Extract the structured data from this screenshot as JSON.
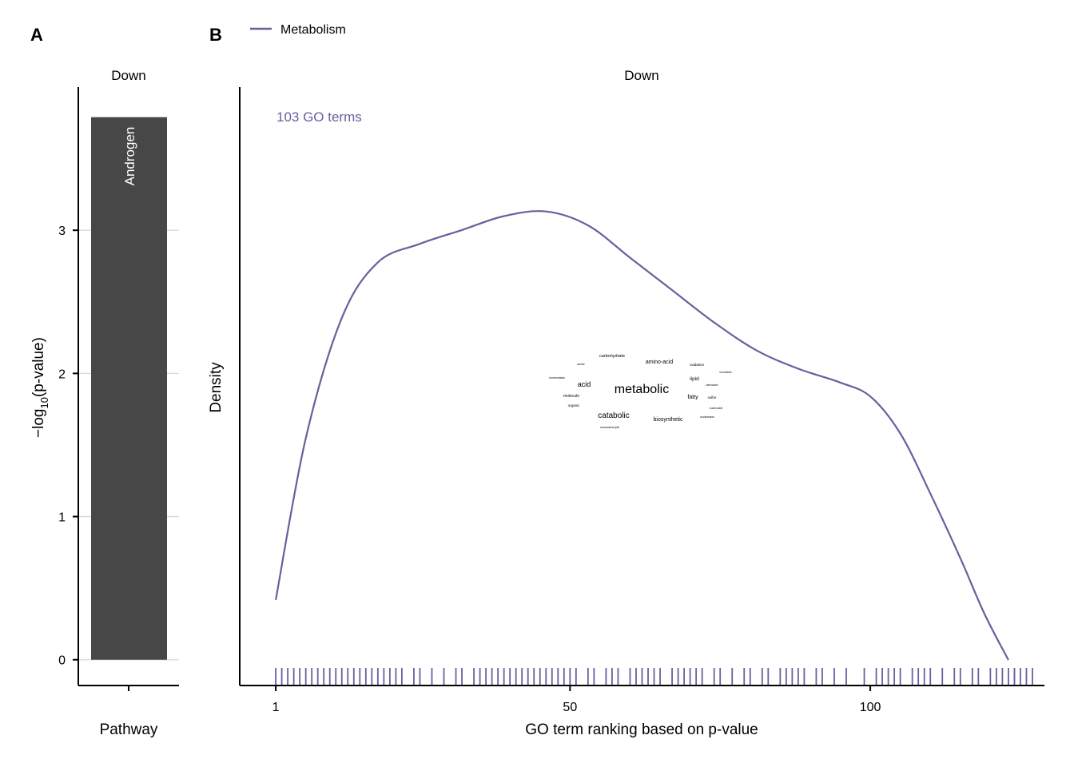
{
  "panels": {
    "a_letter": "A",
    "b_letter": "B"
  },
  "chart_data": [
    {
      "panel": "A",
      "type": "bar",
      "strip_title": "Down",
      "categories": [
        "Pathway"
      ],
      "bar_labels": [
        "Androgen"
      ],
      "values": [
        3.79
      ],
      "xlabel": "Pathway",
      "ylabel_main": "−log",
      "ylabel_sub": "10",
      "ylabel_tail": "(p-value)",
      "ylim": [
        -0.18,
        4.0
      ],
      "yticks": [
        0,
        1,
        2,
        3
      ],
      "grid": "horizontal major lines",
      "bar_color": "#474747",
      "bar_label_color": "#ffffff"
    },
    {
      "panel": "B",
      "type": "line",
      "strip_title": "Down",
      "annotation": "103 GO terms",
      "xlabel": "GO term ranking based on p-value",
      "ylabel": "Density",
      "xticks": [
        1,
        50,
        100
      ],
      "xlim": [
        -5,
        129
      ],
      "legend_position": "top-left",
      "series": [
        {
          "name": "Metabolism",
          "color": "#67609e",
          "density_x": [
            1,
            6,
            12,
            18,
            25,
            32,
            39,
            46,
            53,
            60,
            67,
            74,
            81,
            88,
            95,
            100,
            105,
            110,
            115,
            119,
            123
          ],
          "density_y": [
            0.13,
            0.48,
            0.74,
            0.86,
            0.9,
            0.93,
            0.96,
            0.97,
            0.94,
            0.87,
            0.8,
            0.73,
            0.67,
            0.63,
            0.6,
            0.57,
            0.49,
            0.36,
            0.22,
            0.1,
            0.0
          ],
          "ylim": [
            0,
            1.03
          ],
          "rug_positions": [
            1,
            2,
            3,
            4,
            5,
            6,
            7,
            8,
            9,
            10,
            11,
            12,
            13,
            14,
            15,
            16,
            17,
            18,
            19,
            20,
            21,
            22,
            24,
            25,
            27,
            29,
            31,
            32,
            34,
            35,
            36,
            37,
            38,
            39,
            40,
            41,
            42,
            43,
            44,
            45,
            46,
            47,
            48,
            49,
            50,
            51,
            53,
            54,
            56,
            57,
            58,
            60,
            61,
            62,
            63,
            64,
            65,
            67,
            68,
            69,
            70,
            71,
            72,
            74,
            75,
            77,
            79,
            80,
            82,
            83,
            85,
            86,
            87,
            88,
            89,
            91,
            92,
            94,
            96,
            99,
            101,
            102,
            103,
            104,
            105,
            107,
            108,
            109,
            110,
            112,
            114,
            115,
            117,
            118,
            120,
            121,
            122,
            123,
            124,
            125,
            126,
            127,
            124
          ]
        }
      ],
      "word_cloud": [
        {
          "text": "metabolic",
          "size": 16
        },
        {
          "text": "catabolic",
          "size": 10
        },
        {
          "text": "acid",
          "size": 9
        },
        {
          "text": "biosynthetic",
          "size": 7
        },
        {
          "text": "amino-acid",
          "size": 7
        },
        {
          "text": "fatty",
          "size": 7
        },
        {
          "text": "lipid",
          "size": 6.5
        },
        {
          "text": "carbohydrate",
          "size": 5.5
        },
        {
          "text": "molecule",
          "size": 5
        },
        {
          "text": "organic",
          "size": 4.5
        },
        {
          "text": "sulfur",
          "size": 4.5
        },
        {
          "text": "oxidation",
          "size": 4.5
        },
        {
          "text": "amine",
          "size": 3.5
        },
        {
          "text": "homeostasis",
          "size": 3.5
        },
        {
          "text": "xenobiotic",
          "size": 3.5
        },
        {
          "text": "derivative",
          "size": 3.5
        },
        {
          "text": "nucleoside",
          "size": 3.5
        },
        {
          "text": "nucleobase",
          "size": 3.5
        },
        {
          "text": "monocarboxylic",
          "size": 3.5
        }
      ]
    }
  ]
}
